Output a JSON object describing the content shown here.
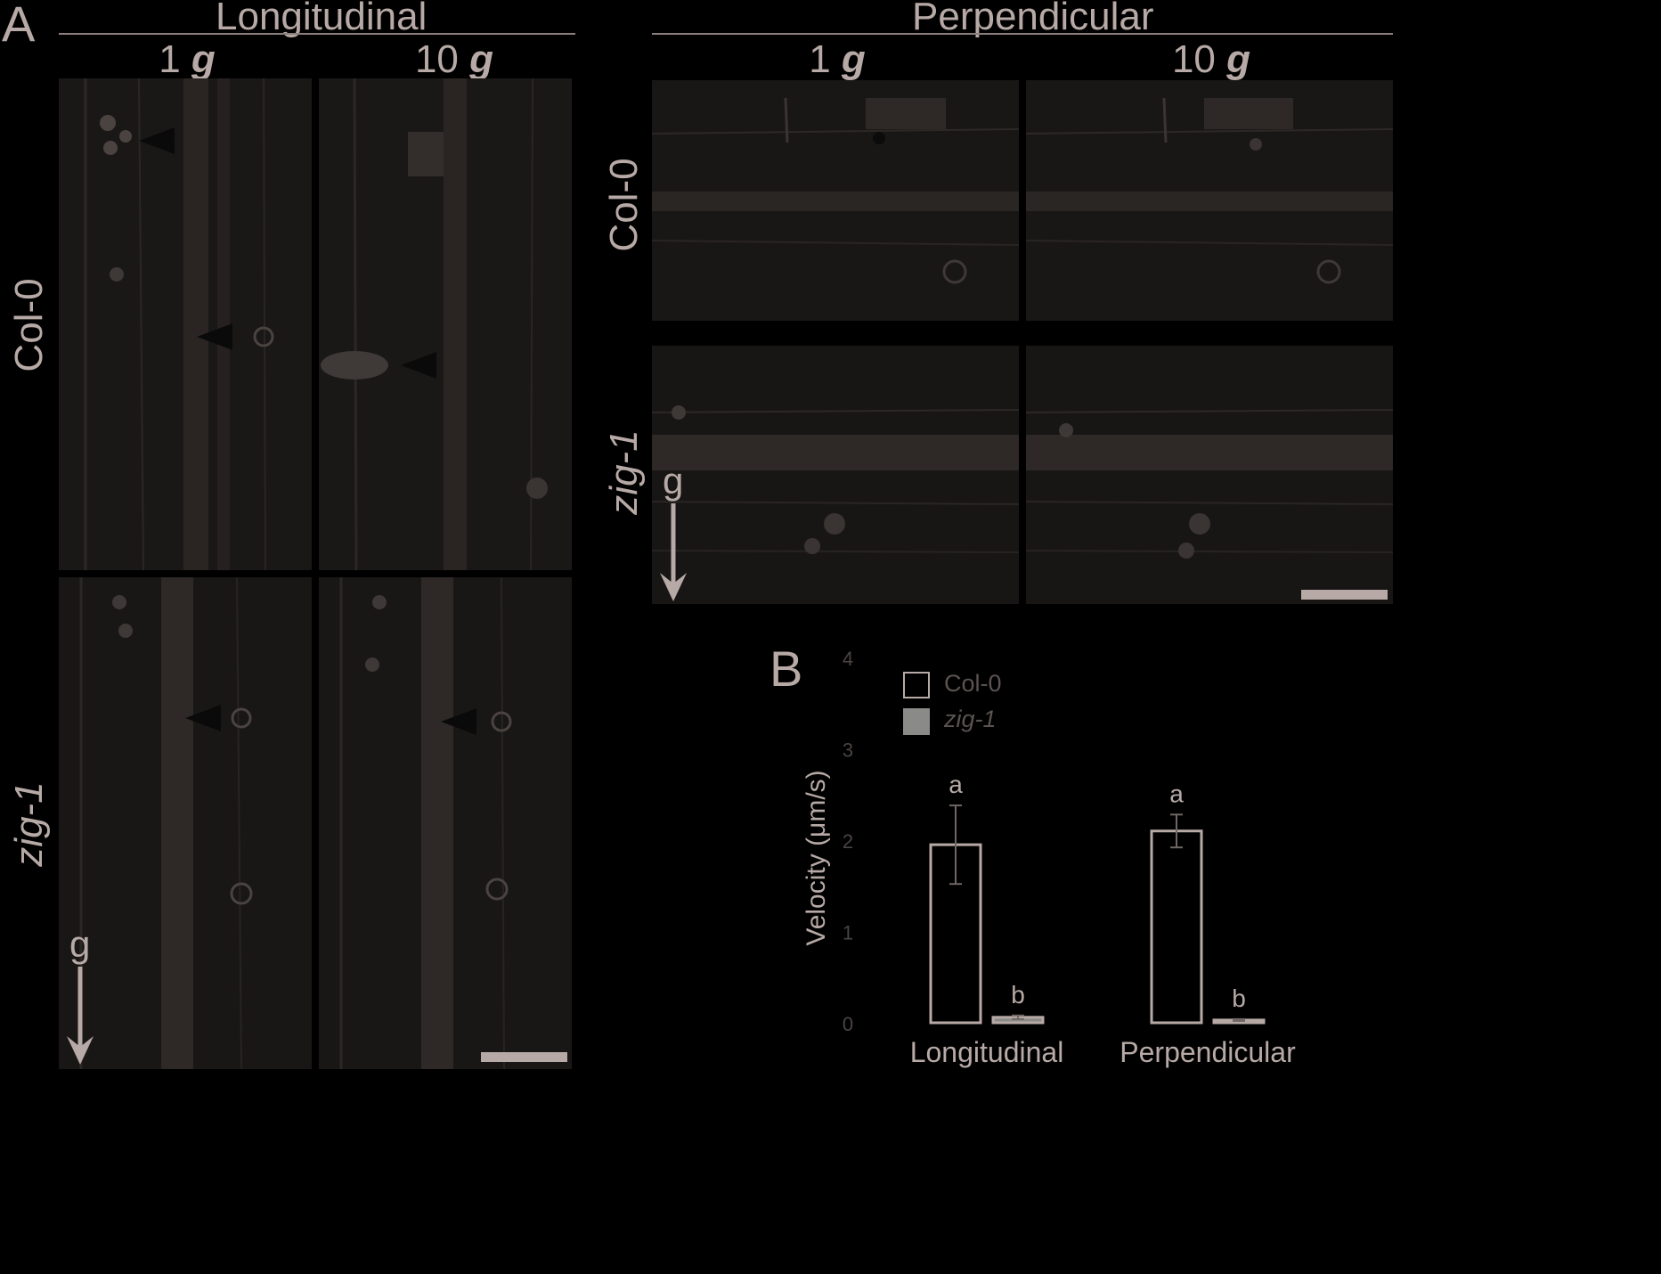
{
  "panel_a": {
    "letter": "A",
    "sections": {
      "longitudinal": "Longitudinal",
      "perpendicular": "Perpendicular"
    },
    "columns": {
      "g1_number": "1",
      "g10_number": "10",
      "g_symbol": "g"
    },
    "rows": {
      "wild_type": "Col-0",
      "mutant": "zig-1"
    },
    "gravity_letter": "g"
  },
  "panel_b": {
    "letter": "B",
    "legend": {
      "col0": "Col-0",
      "zig1": "zig-1"
    },
    "colors": {
      "col0_fill": "#000000",
      "zig1_fill": "#8a8a88",
      "outline": "#b7aaa6"
    }
  },
  "chart_data": {
    "type": "bar",
    "categories": [
      "Longitudinal",
      "Perpendicular"
    ],
    "series": [
      {
        "name": "Col-0",
        "values": [
          1.95,
          2.1
        ],
        "errors": [
          0.43,
          0.18
        ],
        "letters": [
          "a",
          "a"
        ]
      },
      {
        "name": "zig-1",
        "values": [
          0.06,
          0.03
        ],
        "errors": [
          0.02,
          0.01
        ],
        "letters": [
          "b",
          "b"
        ]
      }
    ],
    "ylabel": "Velocity (μm/s)",
    "ylim": [
      0,
      4
    ],
    "yticks": [
      "0",
      "1",
      "2",
      "3",
      "4"
    ],
    "grid": false,
    "legend_position": "top-left"
  }
}
